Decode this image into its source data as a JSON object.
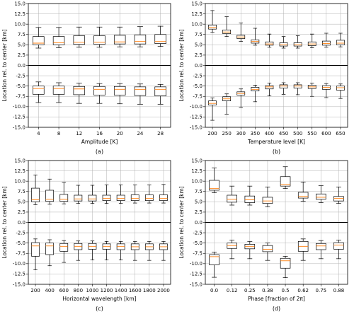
{
  "chart_data": [
    {
      "type": "box",
      "panel_label": "(a)",
      "xlabel": "Amplitude [K]",
      "ylabel": "Location rel. to center [km]",
      "ylim": [
        -15,
        15
      ],
      "yticks": [
        "-15.0",
        "-12.5",
        "-10.0",
        "-7.5",
        "-5.0",
        "-2.5",
        "0.0",
        "2.5",
        "5.0",
        "7.5",
        "10.0",
        "12.5",
        "15.0"
      ],
      "grid": true,
      "zero_line": true,
      "categories": [
        "4",
        "8",
        "12",
        "16",
        "20",
        "24",
        "28"
      ],
      "upper": [
        {
          "wl": 4.2,
          "q1": 5.0,
          "med": 5.4,
          "q3": 7.0,
          "wh": 9.2
        },
        {
          "wl": 4.3,
          "q1": 5.0,
          "med": 5.5,
          "q3": 7.0,
          "wh": 9.2
        },
        {
          "wl": 4.4,
          "q1": 5.1,
          "med": 5.6,
          "q3": 7.2,
          "wh": 9.3
        },
        {
          "wl": 4.4,
          "q1": 5.1,
          "med": 5.6,
          "q3": 7.2,
          "wh": 9.3
        },
        {
          "wl": 4.5,
          "q1": 5.2,
          "med": 5.7,
          "q3": 7.3,
          "wh": 9.3
        },
        {
          "wl": 4.5,
          "q1": 5.2,
          "med": 5.8,
          "q3": 7.4,
          "wh": 9.4
        },
        {
          "wl": 4.6,
          "q1": 5.3,
          "med": 5.8,
          "q3": 7.5,
          "wh": 9.5
        }
      ],
      "lower": [
        {
          "wl": -9.0,
          "q1": -7.0,
          "med": -5.6,
          "q3": -5.0,
          "wh": -4.0
        },
        {
          "wl": -9.0,
          "q1": -7.0,
          "med": -5.6,
          "q3": -5.0,
          "wh": -4.2
        },
        {
          "wl": -9.2,
          "q1": -7.1,
          "med": -5.7,
          "q3": -5.1,
          "wh": -4.3
        },
        {
          "wl": -9.2,
          "q1": -7.2,
          "med": -5.8,
          "q3": -5.1,
          "wh": -4.4
        },
        {
          "wl": -9.3,
          "q1": -7.2,
          "med": -5.8,
          "q3": -5.1,
          "wh": -4.4
        },
        {
          "wl": -9.4,
          "q1": -7.3,
          "med": -5.8,
          "q3": -5.2,
          "wh": -4.5
        },
        {
          "wl": -9.4,
          "q1": -7.4,
          "med": -5.8,
          "q3": -5.2,
          "wh": -4.6
        }
      ]
    },
    {
      "type": "box",
      "panel_label": "(b)",
      "xlabel": "Temperature level [K]",
      "ylabel": "Location rel. to center [km]",
      "ylim": [
        -15,
        15
      ],
      "yticks": [
        "-15.0",
        "-12.5",
        "-10.0",
        "-7.5",
        "-5.0",
        "-2.5",
        "0.0",
        "2.5",
        "5.0",
        "7.5",
        "10.0",
        "12.5",
        "15.0"
      ],
      "grid": true,
      "zero_line": true,
      "categories": [
        "200",
        "250",
        "300",
        "350",
        "400",
        "450",
        "500",
        "550",
        "600",
        "650"
      ],
      "upper": [
        {
          "wl": 8.0,
          "q1": 8.8,
          "med": 9.2,
          "q3": 9.8,
          "wh": 13.3
        },
        {
          "wl": 7.0,
          "q1": 7.7,
          "med": 8.1,
          "q3": 8.6,
          "wh": 11.8
        },
        {
          "wl": 5.8,
          "q1": 6.5,
          "med": 6.9,
          "q3": 7.3,
          "wh": 10.3
        },
        {
          "wl": 4.9,
          "q1": 5.4,
          "med": 5.8,
          "q3": 6.2,
          "wh": 9.0
        },
        {
          "wl": 4.4,
          "q1": 4.9,
          "med": 5.2,
          "q3": 5.7,
          "wh": 7.6
        },
        {
          "wl": 4.2,
          "q1": 4.7,
          "med": 5.0,
          "q3": 5.5,
          "wh": 7.0
        },
        {
          "wl": 4.2,
          "q1": 4.7,
          "med": 5.0,
          "q3": 5.5,
          "wh": 7.2
        },
        {
          "wl": 4.3,
          "q1": 4.8,
          "med": 5.2,
          "q3": 5.7,
          "wh": 7.6
        },
        {
          "wl": 4.4,
          "q1": 4.9,
          "med": 5.3,
          "q3": 5.9,
          "wh": 7.8
        },
        {
          "wl": 4.5,
          "q1": 5.0,
          "med": 5.4,
          "q3": 6.1,
          "wh": 7.8
        }
      ],
      "lower": [
        {
          "wl": -13.3,
          "q1": -9.6,
          "med": -9.2,
          "q3": -8.6,
          "wh": -7.9
        },
        {
          "wl": -11.8,
          "q1": -8.6,
          "med": -8.1,
          "q3": -7.6,
          "wh": -6.9
        },
        {
          "wl": -10.2,
          "q1": -7.2,
          "med": -6.8,
          "q3": -6.4,
          "wh": -5.7
        },
        {
          "wl": -8.8,
          "q1": -6.2,
          "med": -5.8,
          "q3": -5.3,
          "wh": -4.8
        },
        {
          "wl": -7.4,
          "q1": -5.7,
          "med": -5.2,
          "q3": -4.9,
          "wh": -4.3
        },
        {
          "wl": -7.0,
          "q1": -5.5,
          "med": -5.0,
          "q3": -4.7,
          "wh": -4.2
        },
        {
          "wl": -7.1,
          "q1": -5.5,
          "med": -5.0,
          "q3": -4.7,
          "wh": -4.2
        },
        {
          "wl": -7.5,
          "q1": -5.6,
          "med": -5.2,
          "q3": -4.8,
          "wh": -4.3
        },
        {
          "wl": -7.8,
          "q1": -5.8,
          "med": -5.3,
          "q3": -4.9,
          "wh": -4.4
        },
        {
          "wl": -8.0,
          "q1": -6.0,
          "med": -5.4,
          "q3": -5.0,
          "wh": -4.5
        }
      ]
    },
    {
      "type": "box",
      "panel_label": "(c)",
      "xlabel": "Horizontal wavelength [km]",
      "ylabel": "Location rel. to center [km]",
      "ylim": [
        -15,
        15
      ],
      "yticks": [
        "-15.0",
        "-12.5",
        "-10.0",
        "-7.5",
        "-5.0",
        "-2.5",
        "0.0",
        "2.5",
        "5.0",
        "7.5",
        "10.0",
        "12.5",
        "15.0"
      ],
      "grid": true,
      "zero_line": true,
      "categories": [
        "200",
        "400",
        "600",
        "800",
        "1000",
        "1200",
        "1400",
        "1600",
        "1800",
        "2000"
      ],
      "upper": [
        {
          "wl": 4.3,
          "q1": 5.0,
          "med": 5.5,
          "q3": 8.3,
          "wh": 11.5
        },
        {
          "wl": 4.4,
          "q1": 5.1,
          "med": 5.6,
          "q3": 7.8,
          "wh": 10.5
        },
        {
          "wl": 4.5,
          "q1": 5.1,
          "med": 5.6,
          "q3": 6.8,
          "wh": 9.7
        },
        {
          "wl": 4.6,
          "q1": 5.2,
          "med": 5.7,
          "q3": 6.6,
          "wh": 9.0
        },
        {
          "wl": 4.6,
          "q1": 5.2,
          "med": 5.7,
          "q3": 6.6,
          "wh": 9.0
        },
        {
          "wl": 4.6,
          "q1": 5.3,
          "med": 5.8,
          "q3": 6.6,
          "wh": 9.1
        },
        {
          "wl": 4.6,
          "q1": 5.3,
          "med": 5.8,
          "q3": 6.6,
          "wh": 9.1
        },
        {
          "wl": 4.7,
          "q1": 5.3,
          "med": 5.8,
          "q3": 6.7,
          "wh": 9.1
        },
        {
          "wl": 4.7,
          "q1": 5.3,
          "med": 5.8,
          "q3": 6.7,
          "wh": 9.1
        },
        {
          "wl": 4.7,
          "q1": 5.3,
          "med": 5.8,
          "q3": 6.7,
          "wh": 9.2
        }
      ],
      "lower": [
        {
          "wl": -11.5,
          "q1": -8.2,
          "med": -5.7,
          "q3": -4.9,
          "wh": -4.0
        },
        {
          "wl": -10.5,
          "q1": -7.8,
          "med": -5.7,
          "q3": -5.0,
          "wh": -4.2
        },
        {
          "wl": -9.7,
          "q1": -7.0,
          "med": -5.8,
          "q3": -5.1,
          "wh": -4.4
        },
        {
          "wl": -9.2,
          "q1": -6.6,
          "med": -5.8,
          "q3": -5.1,
          "wh": -4.5
        },
        {
          "wl": -9.1,
          "q1": -6.5,
          "med": -5.8,
          "q3": -5.1,
          "wh": -4.5
        },
        {
          "wl": -9.1,
          "q1": -6.5,
          "med": -5.8,
          "q3": -5.2,
          "wh": -4.6
        },
        {
          "wl": -9.1,
          "q1": -6.6,
          "med": -5.8,
          "q3": -5.2,
          "wh": -4.6
        },
        {
          "wl": -9.2,
          "q1": -6.6,
          "med": -5.9,
          "q3": -5.2,
          "wh": -4.6
        },
        {
          "wl": -9.2,
          "q1": -6.6,
          "med": -5.9,
          "q3": -5.2,
          "wh": -4.6
        },
        {
          "wl": -9.2,
          "q1": -6.6,
          "med": -5.9,
          "q3": -5.2,
          "wh": -4.6
        }
      ]
    },
    {
      "type": "box",
      "panel_label": "(d)",
      "xlabel": "Phase [fraction of 2π]",
      "ylabel": "Location rel. to center [km]",
      "ylim": [
        -15,
        15
      ],
      "yticks": [
        "-15.0",
        "-12.5",
        "-10.0",
        "-7.5",
        "-5.0",
        "-2.5",
        "0.0",
        "2.5",
        "5.0",
        "7.5",
        "10.0",
        "12.5",
        "15.0"
      ],
      "grid": true,
      "zero_line": true,
      "categories": [
        "0.0",
        "0.12",
        "0.25",
        "0.38",
        "0.5",
        "0.62",
        "0.75",
        "0.88"
      ],
      "upper": [
        {
          "wl": 7.2,
          "q1": 7.8,
          "med": 8.2,
          "q3": 10.2,
          "wh": 13.2
        },
        {
          "wl": 4.2,
          "q1": 4.9,
          "med": 5.6,
          "q3": 6.6,
          "wh": 8.8
        },
        {
          "wl": 4.2,
          "q1": 4.8,
          "med": 5.5,
          "q3": 6.4,
          "wh": 8.8
        },
        {
          "wl": 3.8,
          "q1": 4.6,
          "med": 5.2,
          "q3": 6.1,
          "wh": 8.6
        },
        {
          "wl": 8.2,
          "q1": 8.8,
          "med": 9.2,
          "q3": 11.1,
          "wh": 13.5
        },
        {
          "wl": 5.1,
          "q1": 5.9,
          "med": 6.3,
          "q3": 7.3,
          "wh": 9.8
        },
        {
          "wl": 4.8,
          "q1": 5.6,
          "med": 6.1,
          "q3": 6.9,
          "wh": 8.9
        },
        {
          "wl": 4.6,
          "q1": 5.2,
          "med": 5.8,
          "q3": 6.3,
          "wh": 8.6
        }
      ],
      "lower": [
        {
          "wl": -13.3,
          "q1": -10.3,
          "med": -8.3,
          "q3": -7.8,
          "wh": -7.2
        },
        {
          "wl": -8.8,
          "q1": -6.3,
          "med": -5.6,
          "q3": -5.0,
          "wh": -4.3
        },
        {
          "wl": -8.8,
          "q1": -6.4,
          "med": -5.8,
          "q3": -5.3,
          "wh": -4.6
        },
        {
          "wl": -9.2,
          "q1": -7.1,
          "med": -6.5,
          "q3": -5.6,
          "wh": -5.0
        },
        {
          "wl": -13.4,
          "q1": -11.1,
          "med": -9.3,
          "q3": -8.7,
          "wh": -8.2
        },
        {
          "wl": -9.2,
          "q1": -7.0,
          "med": -5.8,
          "q3": -4.6,
          "wh": -4.0
        },
        {
          "wl": -8.8,
          "q1": -6.6,
          "med": -5.7,
          "q3": -5.1,
          "wh": -4.4
        },
        {
          "wl": -8.8,
          "q1": -6.5,
          "med": -5.5,
          "q3": -4.9,
          "wh": -4.3
        }
      ]
    }
  ],
  "colors": {
    "box": "#000000",
    "median": "#ff7f0e",
    "grid": "#b0b0b0",
    "zero_line": "#000000"
  }
}
